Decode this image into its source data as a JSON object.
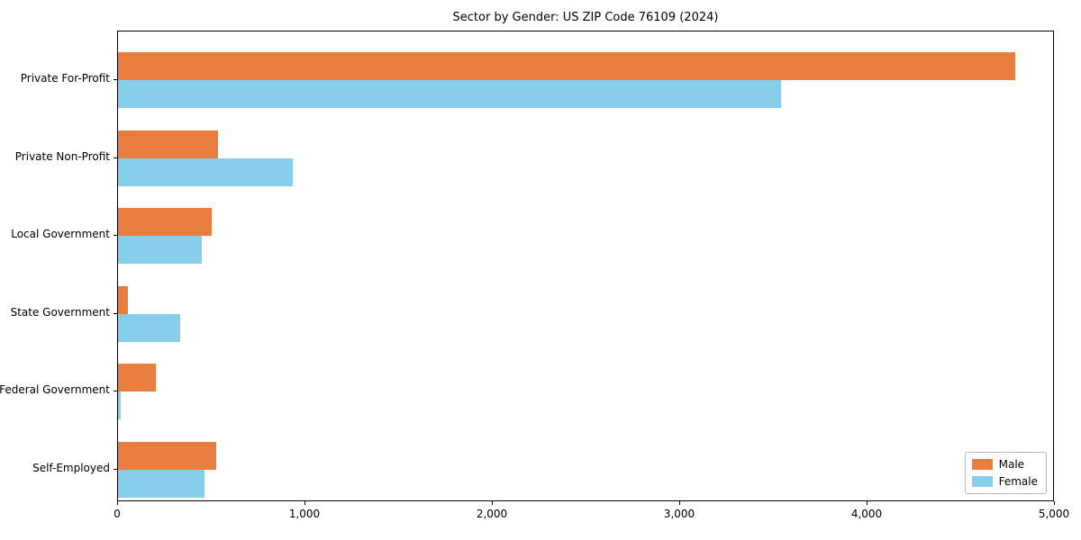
{
  "chart_data": {
    "type": "bar",
    "orientation": "horizontal",
    "title": "Sector by Gender: US ZIP Code 76109 (2024)",
    "categories": [
      "Private For-Profit",
      "Private Non-Profit",
      "Local Government",
      "State Government",
      "Federal Government",
      "Self-Employed"
    ],
    "series": [
      {
        "name": "Male",
        "color": "#E87D3E",
        "values": [
          4790,
          535,
          500,
          55,
          200,
          525
        ]
      },
      {
        "name": "Female",
        "color": "#87CEEB",
        "values": [
          3540,
          935,
          445,
          330,
          15,
          460
        ]
      }
    ],
    "xlabel": "",
    "ylabel": "",
    "xlim": [
      0,
      5000
    ],
    "x_ticks": [
      {
        "value": 0,
        "label": "0"
      },
      {
        "value": 1000,
        "label": "1,000"
      },
      {
        "value": 2000,
        "label": "2,000"
      },
      {
        "value": 3000,
        "label": "3,000"
      },
      {
        "value": 4000,
        "label": "4,000"
      },
      {
        "value": 5000,
        "label": "5,000"
      }
    ],
    "legend_position": "lower right",
    "grid": false,
    "background": "#ffffff"
  }
}
